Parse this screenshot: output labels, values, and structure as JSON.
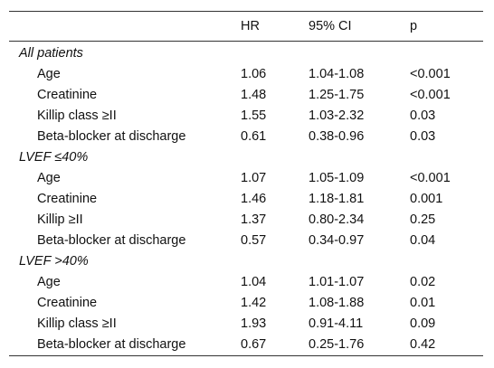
{
  "table": {
    "header": {
      "label": "",
      "hr": "HR",
      "ci": "95% CI",
      "p": "p"
    },
    "sections": [
      {
        "title": "All patients",
        "rows": [
          {
            "label": "Age",
            "hr": "1.06",
            "ci": "1.04-1.08",
            "p": "<0.001"
          },
          {
            "label": "Creatinine",
            "hr": "1.48",
            "ci": "1.25-1.75",
            "p": "<0.001"
          },
          {
            "label": "Killip class ≥II",
            "hr": "1.55",
            "ci": "1.03-2.32",
            "p": "0.03"
          },
          {
            "label": "Beta-blocker at discharge",
            "hr": "0.61",
            "ci": "0.38-0.96",
            "p": "0.03"
          }
        ]
      },
      {
        "title": "LVEF ≤40%",
        "rows": [
          {
            "label": "Age",
            "hr": "1.07",
            "ci": "1.05-1.09",
            "p": "<0.001"
          },
          {
            "label": "Creatinine",
            "hr": "1.46",
            "ci": "1.18-1.81",
            "p": "0.001"
          },
          {
            "label": "Killip ≥II",
            "hr": "1.37",
            "ci": "0.80-2.34",
            "p": "0.25"
          },
          {
            "label": "Beta-blocker at discharge",
            "hr": "0.57",
            "ci": "0.34-0.97",
            "p": "0.04"
          }
        ]
      },
      {
        "title": "LVEF >40%",
        "rows": [
          {
            "label": "Age",
            "hr": "1.04",
            "ci": "1.01-1.07",
            "p": "0.02"
          },
          {
            "label": "Creatinine",
            "hr": "1.42",
            "ci": "1.08-1.88",
            "p": "0.01"
          },
          {
            "label": "Killip class ≥II",
            "hr": "1.93",
            "ci": "0.91-4.11",
            "p": "0.09"
          },
          {
            "label": "Beta-blocker at discharge",
            "hr": "0.67",
            "ci": "0.25-1.76",
            "p": "0.42"
          }
        ]
      }
    ]
  }
}
